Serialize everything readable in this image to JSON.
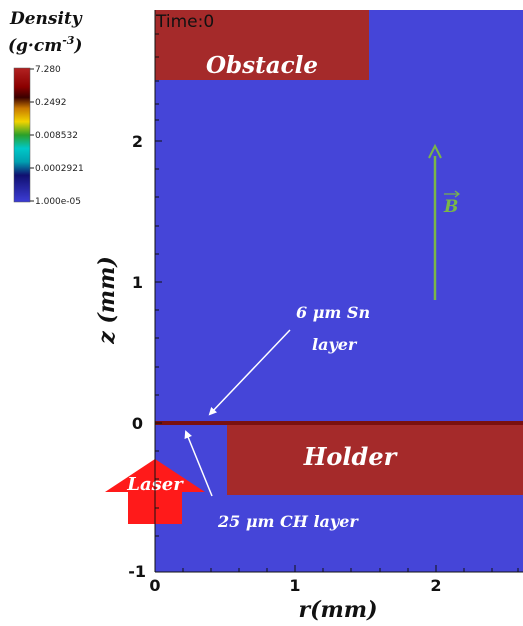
{
  "legend": {
    "title_line1": "Density",
    "title_line2": "(g·cm",
    "title_exp": "-3",
    "title_close": ")",
    "ticks": [
      "7.280",
      "0.2492",
      "0.008532",
      "0.0002921",
      "1.000e-05"
    ]
  },
  "plot": {
    "time_label": "Time:0",
    "background_color": "#4545d8",
    "block_color": "#a52a2a",
    "x_axis": {
      "label": "r(mm)",
      "ticks": [
        "0",
        "1",
        "2"
      ]
    },
    "y_axis": {
      "label": "z (mm)",
      "ticks": [
        "2",
        "1",
        "0",
        "-1"
      ]
    }
  },
  "regions": {
    "obstacle": "Obstacle",
    "holder": "Holder"
  },
  "annotations": {
    "sn_line1": "6 μm Sn",
    "sn_line2": "layer",
    "ch_layer": "25 μm CH layer",
    "laser": "Laser",
    "b_field": "B"
  },
  "colors": {
    "laser": "#ff1a1a",
    "b_arrow": "#7ab648",
    "annotation_text": "#ffffff"
  }
}
